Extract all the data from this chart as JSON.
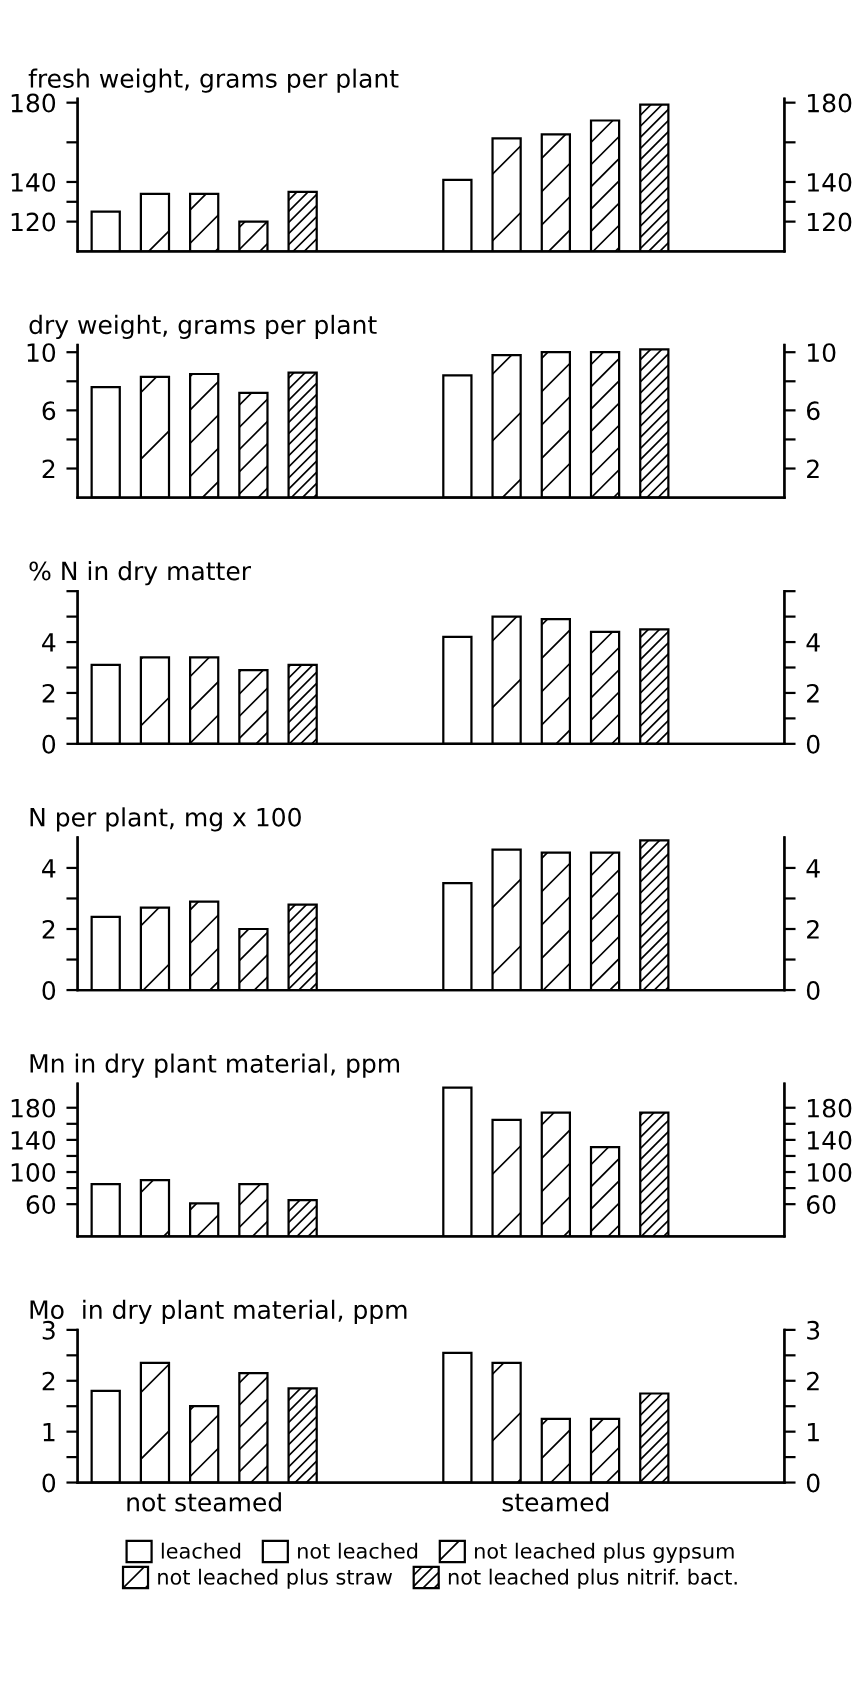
{
  "chart_data": [
    {
      "type": "bar",
      "title": "fresh weight, grams per plant",
      "categories": [
        null,
        null
      ],
      "tick_labels": "y",
      "ylim": [
        105,
        182
      ],
      "yticks": [
        120,
        {
          "value": 130,
          "label": null
        },
        140,
        {
          "value": 160,
          "label": null
        },
        180
      ],
      "y2lim": [
        105,
        182
      ],
      "y2ticks": [
        120,
        {
          "value": 130,
          "label": null
        },
        140,
        {
          "value": 160,
          "label": null
        },
        180
      ],
      "series": [
        {
          "color": "#ffffff",
          "values": [
            125,
            141
          ]
        },
        {
          "color": "#000000",
          "values": [
            134,
            162
          ]
        },
        {
          "color": "#000000",
          "values": [
            134,
            164
          ]
        },
        {
          "color": "#000000",
          "values": [
            120,
            171
          ]
        },
        {
          "color": "#000000",
          "values": [
            135,
            179
          ]
        }
      ]
    },
    {
      "type": "bar",
      "title": "dry weight, grams per plant",
      "categories": [
        null,
        null
      ],
      "tick_labels": "y",
      "ylim": [
        0,
        10.5
      ],
      "yticks": [
        2,
        {
          "value": 4,
          "label": null
        },
        6,
        {
          "value": 8,
          "label": null
        },
        10
      ],
      "y2lim": [
        0,
        10.5
      ],
      "y2ticks": [
        2,
        {
          "value": 4,
          "label": null
        },
        6,
        {
          "value": 8,
          "label": null
        },
        10
      ],
      "series": [
        {
          "color": "#ffffff",
          "values": [
            7.6,
            8.4
          ]
        },
        {
          "color": "#000000",
          "values": [
            8.3,
            9.8
          ]
        },
        {
          "color": "#000000",
          "values": [
            8.5,
            10
          ]
        },
        {
          "color": "#000000",
          "values": [
            7.2,
            10
          ]
        },
        {
          "color": "#000000",
          "values": [
            8.6,
            10.2
          ]
        }
      ]
    },
    {
      "type": "bar",
      "title": "% N in dry matter",
      "categories": [
        null,
        null
      ],
      "tick_labels": "y",
      "ylim": [
        0,
        6
      ],
      "yticks": [
        0,
        {
          "value": 1,
          "label": null
        },
        2,
        {
          "value": 3,
          "label": null
        },
        4,
        {
          "value": 5,
          "label": null
        },
        {
          "value": 6,
          "label": null
        }
      ],
      "y2ticks": [
        0,
        {
          "value": 1,
          "label": null
        },
        2,
        {
          "value": 3,
          "label": null
        },
        4,
        {
          "value": 5,
          "label": null
        },
        {
          "value": 6,
          "label": null
        }
      ],
      "y2lim": [
        0,
        6
      ],
      "series": [
        {
          "color": "#ffffff",
          "values": [
            3.1,
            4.2
          ]
        },
        {
          "color": "#000000",
          "values": [
            3.4,
            5.0
          ]
        },
        {
          "color": "#000000",
          "values": [
            3.4,
            4.9
          ]
        },
        {
          "color": "#000000",
          "values": [
            2.9,
            4.4
          ]
        },
        {
          "color": "#000000",
          "values": [
            3.1,
            4.5
          ]
        }
      ]
    },
    {
      "type": "bar",
      "title": "N per plant, mg x 100",
      "categories": [
        null,
        null
      ],
      "tick_labels": "y",
      "ylim": [
        0,
        5
      ],
      "yticks": [
        0,
        {
          "value": 1,
          "label": null
        },
        2,
        {
          "value": 3,
          "label": null
        },
        4
      ],
      "y2lim": [
        0,
        5
      ],
      "y2ticks": [
        0,
        {
          "value": 1,
          "label": null
        },
        2,
        {
          "value": 3,
          "label": null
        },
        4
      ],
      "series": [
        {
          "color": "#ffffff",
          "values": [
            2.4,
            3.5
          ]
        },
        {
          "color": "#000000",
          "values": [
            2.7,
            4.6
          ]
        },
        {
          "color": "#000000",
          "values": [
            2.9,
            4.5
          ]
        },
        {
          "color": "#000000",
          "values": [
            2.0,
            4.5
          ]
        },
        {
          "color": "#000000",
          "values": [
            2.8,
            4.9
          ]
        }
      ]
    },
    {
      "type": "bar",
      "title": "Mn in dry plant material, ppm",
      "categories": [
        null,
        null
      ],
      "tick_labels": "y",
      "ylim": [
        20,
        210
      ],
      "yticks": [
        60,
        {
          "value": 80,
          "label": null
        },
        100,
        {
          "value": 120,
          "label": null
        },
        140,
        {
          "value": 160,
          "label": null
        },
        180
      ],
      "y2lim": [
        20,
        210
      ],
      "y2ticks": [
        60,
        {
          "value": 80,
          "label": null
        },
        100,
        {
          "value": 120,
          "label": null
        },
        140,
        {
          "value": 160,
          "label": null
        },
        180
      ],
      "series": [
        {
          "color": "#ffffff",
          "values": [
            85,
            205
          ]
        },
        {
          "color": "#000000",
          "values": [
            90,
            165
          ]
        },
        {
          "color": "#000000",
          "values": [
            61,
            174
          ]
        },
        {
          "color": "#000000",
          "values": [
            85,
            131
          ]
        },
        {
          "color": "#000000",
          "values": [
            65,
            174
          ]
        }
      ]
    },
    {
      "type": "bar",
      "title": "Mo  in dry plant material, ppm",
      "categories": [
        "not steamed",
        "steamed"
      ],
      "legend": "bottom",
      "ylim": [
        0,
        3
      ],
      "yticks": [
        0,
        {
          "value": 0.5,
          "label": null
        },
        1,
        {
          "value": 1.5,
          "label": null
        },
        2,
        {
          "value": 2.5,
          "label": null
        },
        3
      ],
      "y2lim": [
        0,
        3
      ],
      "y2ticks": [
        0,
        {
          "value": 0.5,
          "label": null
        },
        1,
        {
          "value": 1.5,
          "label": null
        },
        2,
        {
          "value": 2.5,
          "label": null
        },
        3
      ],
      "series": [
        {
          "name": "leached",
          "color": "#ffffff",
          "values": [
            1.8,
            2.55
          ]
        },
        {
          "name": "not leached",
          "color": "#000000",
          "values": [
            2.35,
            2.35
          ]
        },
        {
          "name": "not leached plus gypsum",
          "color": "#000000",
          "values": [
            1.5,
            1.25
          ]
        },
        {
          "name": "not leached plus straw",
          "color": "#000000",
          "values": [
            2.15,
            1.25
          ]
        },
        {
          "name": "not leached plus nitrif. bact.",
          "color": "#000000",
          "values": [
            1.85,
            1.75
          ]
        }
      ]
    }
  ]
}
